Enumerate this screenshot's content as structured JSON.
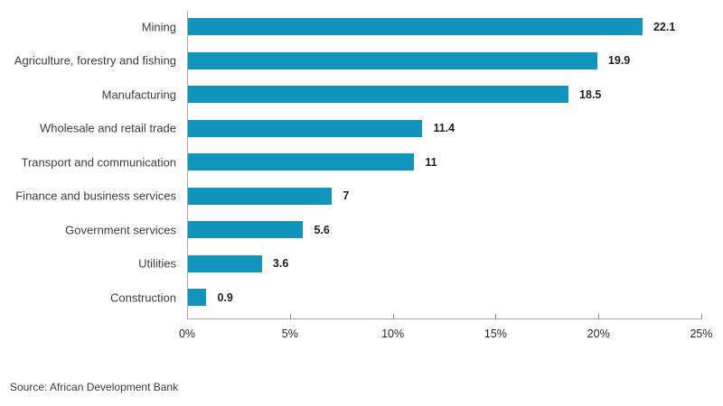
{
  "chart_data": {
    "type": "bar",
    "orientation": "horizontal",
    "title": "",
    "xlabel": "",
    "ylabel": "",
    "categories": [
      "Mining",
      "Agriculture, forestry and fishing",
      "Manufacturing",
      "Wholesale and retail trade",
      "Transport and communication",
      "Finance and business services",
      "Government services",
      "Utilities",
      "Construction"
    ],
    "values": [
      22.1,
      19.9,
      18.5,
      11.4,
      11,
      7,
      5.6,
      3.6,
      0.9
    ],
    "value_labels": [
      "22.1",
      "19.9",
      "18.5",
      "11.4",
      "11",
      "7",
      "5.6",
      "3.6",
      "0.9"
    ],
    "xlim": [
      0,
      25
    ],
    "x_ticks": [
      0,
      5,
      10,
      15,
      20,
      25
    ],
    "x_tick_labels": [
      "0%",
      "5%",
      "10%",
      "15%",
      "20%",
      "25%"
    ],
    "grid": false,
    "legend": null
  },
  "colors": {
    "bar": "#1295BC",
    "axis_line": "#a6a6a6",
    "tick": "#8c8c8c",
    "category_label": "#3d3d3d",
    "value_label": "#1f1f1f",
    "tick_label": "#262626",
    "background": "#ffffff"
  },
  "footer": {
    "source": "Source: African Development Bank"
  }
}
